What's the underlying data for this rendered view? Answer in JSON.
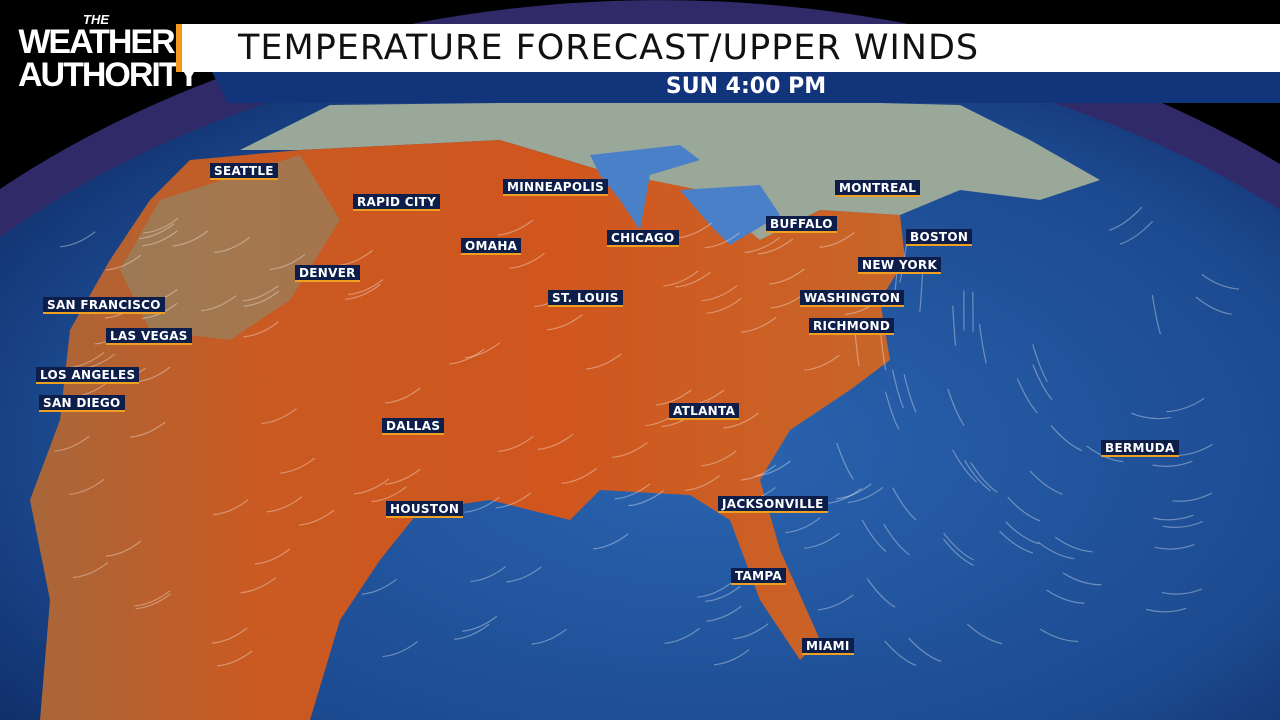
{
  "logo": {
    "line1": "THE",
    "line2": "WEATHER",
    "line3": "AUTHORITY"
  },
  "header": {
    "title": "TEMPERATURE FORECAST/UPPER WINDS",
    "time": "SUN 4:00 PM"
  },
  "cities": [
    "SEATTLE",
    "RAPID CITY",
    "MINNEAPOLIS",
    "OMAHA",
    "CHICAGO",
    "MONTREAL",
    "BUFFALO",
    "BOSTON",
    "NEW YORK",
    "WASHINGTON",
    "RICHMOND",
    "ST. LOUIS",
    "DENVER",
    "SAN FRANCISCO",
    "LAS VEGAS",
    "LOS ANGELES",
    "SAN DIEGO",
    "DALLAS",
    "ATLANTA",
    "HOUSTON",
    "JACKSONVILLE",
    "TAMPA",
    "MIAMI",
    "BERMUDA"
  ],
  "colors": {
    "ocean": "#1f4f95",
    "land_warm": "#c9521f",
    "land_cool": "#8a8a6a",
    "accent": "#f39a1c",
    "banner": "#12347a"
  }
}
